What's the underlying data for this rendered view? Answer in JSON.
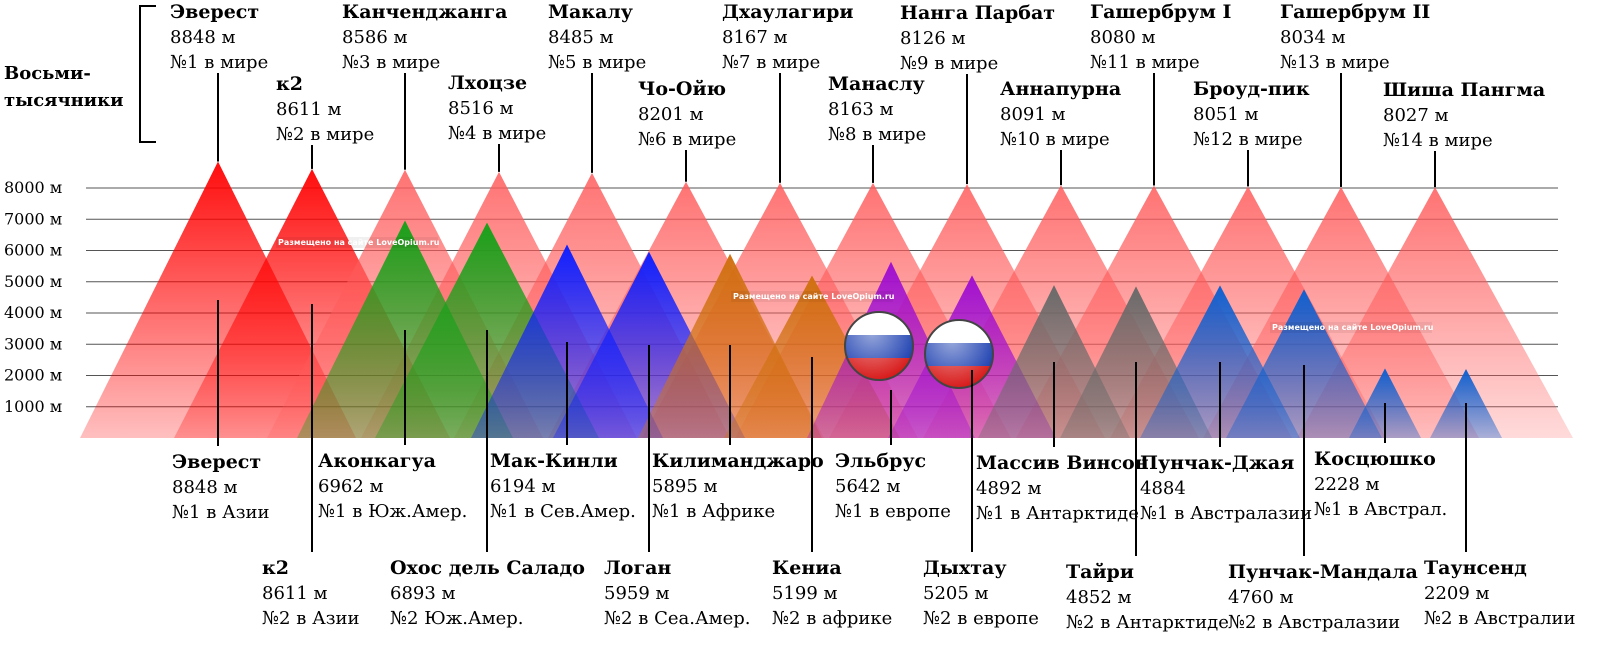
{
  "title": "Восьми-\nтысячники",
  "watermark": "Размещено на сайте LoveOpium.ru",
  "y_axis": {
    "ticks": [
      "8000 м",
      "7000 м",
      "6000 м",
      "5000 м",
      "4000 м",
      "3000 м",
      "2000 м",
      "1000 м"
    ]
  },
  "colors": {
    "eighth_top": "#ff0000",
    "eight": "#ff5a5a",
    "south_america": "#1aa01a",
    "north_america": "#1020ff",
    "africa": "#d07010",
    "europe": "#a010d0",
    "antarctica": "#6a6a6a",
    "australasia": "#1060d0",
    "australia": "#1060d0"
  },
  "eight_thousanders": [
    {
      "name": "Эверест",
      "height": 8848,
      "height_label": "8848 м",
      "rank": "№1 в мире"
    },
    {
      "name": "к2",
      "height": 8611,
      "height_label": "8611 м",
      "rank": "№2 в мире"
    },
    {
      "name": "Канченджанга",
      "height": 8586,
      "height_label": "8586 м",
      "rank": "№3 в мире"
    },
    {
      "name": "Лхоцзе",
      "height": 8516,
      "height_label": "8516 м",
      "rank": "№4 в мире"
    },
    {
      "name": "Макалу",
      "height": 8485,
      "height_label": "8485 м",
      "rank": "№5 в мире"
    },
    {
      "name": "Чо-Ойю",
      "height": 8201,
      "height_label": "8201 м",
      "rank": "№6 в мире"
    },
    {
      "name": "Дхаулагири",
      "height": 8167,
      "height_label": "8167 м",
      "rank": "№7 в мире"
    },
    {
      "name": "Манаслу",
      "height": 8163,
      "height_label": "8163 м",
      "rank": "№8 в мире"
    },
    {
      "name": "Нанга Парбат",
      "height": 8126,
      "height_label": "8126 м",
      "rank": "№9 в мире"
    },
    {
      "name": "Аннапурна",
      "height": 8091,
      "height_label": "8091 м",
      "rank": "№10 в мире"
    },
    {
      "name": "Гашербрум I",
      "height": 8080,
      "height_label": "8080 м",
      "rank": "№11 в мире"
    },
    {
      "name": "Броуд-пик",
      "height": 8051,
      "height_label": "8051 м",
      "rank": "№12 в мире"
    },
    {
      "name": "Гашербрум II",
      "height": 8034,
      "height_label": "8034 м",
      "rank": "№13 в мире"
    },
    {
      "name": "Шиша Пангма",
      "height": 8027,
      "height_label": "8027 м",
      "rank": "№14 в мире"
    }
  ],
  "continental_peaks": [
    {
      "name": "Эверест",
      "height": 8848,
      "height_label": "8848 м",
      "rank": "№1 в Азии",
      "color_key": "eighth_top"
    },
    {
      "name": "к2",
      "height": 8611,
      "height_label": "8611 м",
      "rank": "№2 в Азии",
      "color_key": "eighth_top"
    },
    {
      "name": "Аконкагуа",
      "height": 6962,
      "height_label": "6962 м",
      "rank": "№1 в Юж.Амер.",
      "color_key": "south_america"
    },
    {
      "name": "Охос дель Саладо",
      "height": 6893,
      "height_label": "6893 м",
      "rank": "№2 Юж.Амер.",
      "color_key": "south_america"
    },
    {
      "name": "Мак-Кинли",
      "height": 6194,
      "height_label": "6194 м",
      "rank": "№1 в Сев.Амер.",
      "color_key": "north_america"
    },
    {
      "name": "Логан",
      "height": 5959,
      "height_label": "5959 м",
      "rank": "№2 в Сеа.Амер.",
      "color_key": "north_america"
    },
    {
      "name": "Килиманджаро",
      "height": 5895,
      "height_label": "5895 м",
      "rank": "№1 в Африке",
      "color_key": "africa"
    },
    {
      "name": "Кениа",
      "height": 5199,
      "height_label": "5199 м",
      "rank": "№2 в африке",
      "color_key": "africa"
    },
    {
      "name": "Эльбрус",
      "height": 5642,
      "height_label": "5642 м",
      "rank": "№1 в европе",
      "color_key": "europe"
    },
    {
      "name": "Дыхтау",
      "height": 5205,
      "height_label": "5205 м",
      "rank": "№2 в европе",
      "color_key": "europe"
    },
    {
      "name": "Массив Винсон",
      "height": 4892,
      "height_label": "4892 м",
      "rank": "№1 в Антарктиде",
      "color_key": "antarctica"
    },
    {
      "name": "Тайри",
      "height": 4852,
      "height_label": "4852 м",
      "rank": "№2 в Антарктиде",
      "color_key": "antarctica"
    },
    {
      "name": "Пунчак-Джая",
      "height": 4884,
      "height_label": "4884",
      "rank": "№1 в Австралазии",
      "color_key": "australasia"
    },
    {
      "name": "Пунчак-Мандала",
      "height": 4760,
      "height_label": "4760 м",
      "rank": "№2 в Австралазии",
      "color_key": "australasia"
    },
    {
      "name": "Косцюшко",
      "height": 2228,
      "height_label": "2228 м",
      "rank": "№1 в Австрал.",
      "color_key": "australia"
    },
    {
      "name": "Таунсенд",
      "height": 2209,
      "height_label": "2209 м",
      "rank": "№2 в Австралии",
      "color_key": "australia"
    }
  ]
}
